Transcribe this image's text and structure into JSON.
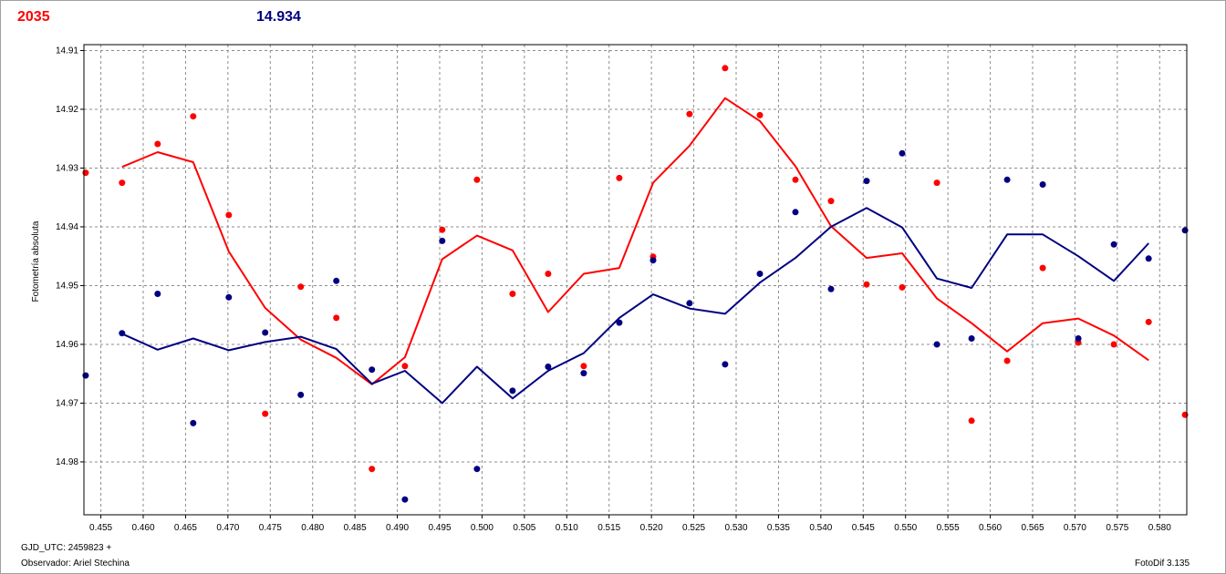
{
  "header": {
    "left_value": "2035",
    "left_color": "#ff0000",
    "right_value": "14.934",
    "right_color": "#000080"
  },
  "footer": {
    "gjd": "GJD_UTC: 2459823 +",
    "observer": "Observador: Ariel Stechina",
    "software": "FotoDif 3.135"
  },
  "chart_data": {
    "type": "scatter",
    "ylabel": "Fotometría absoluta",
    "xlabel": "",
    "xlim": [
      0.453,
      0.5832
    ],
    "ylim": [
      14.989,
      14.909
    ],
    "y_inverted": true,
    "grid": true,
    "x_ticks": [
      0.455,
      0.46,
      0.465,
      0.47,
      0.475,
      0.48,
      0.485,
      0.49,
      0.495,
      0.5,
      0.505,
      0.51,
      0.515,
      0.52,
      0.525,
      0.53,
      0.535,
      0.54,
      0.545,
      0.55,
      0.555,
      0.56,
      0.565,
      0.57,
      0.575,
      0.58
    ],
    "x_tick_labels": [
      "0.455",
      "0.460",
      "0.465",
      "0.470",
      "0.475",
      "0.480",
      "0.485",
      "0.490",
      "0.495",
      "0.500",
      "0.505",
      "0.510",
      "0.515",
      "0.520",
      "0.525",
      "0.530",
      "0.535",
      "0.540",
      "0.545",
      "0.550",
      "0.555",
      "0.560",
      "0.565",
      "0.570",
      "0.575",
      "0.580"
    ],
    "y_ticks": [
      14.91,
      14.92,
      14.93,
      14.94,
      14.95,
      14.96,
      14.97,
      14.98
    ],
    "y_tick_labels": [
      "14.91",
      "14.92",
      "14.93",
      "14.94",
      "14.95",
      "14.96",
      "14.97",
      "14.98"
    ],
    "series": [
      {
        "color": "#ff0000",
        "points": {
          "x": [
            0.4532,
            0.4575,
            0.4617,
            0.4659,
            0.4701,
            0.4744,
            0.4786,
            0.4828,
            0.487,
            0.4909,
            0.4953,
            0.4994,
            0.5036,
            0.5078,
            0.512,
            0.5162,
            0.5202,
            0.5245,
            0.5287,
            0.5328,
            0.537,
            0.5412,
            0.5454,
            0.5496,
            0.5537,
            0.5578,
            0.562,
            0.5662,
            0.5704,
            0.5746,
            0.5787,
            0.583
          ],
          "y": [
            14.9308,
            14.9325,
            14.9259,
            14.9212,
            14.938,
            14.9718,
            14.9502,
            14.9555,
            14.9812,
            14.9637,
            14.9405,
            14.932,
            14.9514,
            14.948,
            14.9637,
            14.9317,
            14.9451,
            14.9208,
            14.913,
            14.921,
            14.932,
            14.9356,
            14.9498,
            14.9503,
            14.9325,
            14.973,
            14.9628,
            14.947,
            14.9597,
            14.96,
            14.9562,
            14.972
          ]
        },
        "line": {
          "x": [
            0.4575,
            0.4617,
            0.4659,
            0.4701,
            0.4744,
            0.4786,
            0.4828,
            0.487,
            0.4909,
            0.4953,
            0.4994,
            0.5036,
            0.5078,
            0.512,
            0.5162,
            0.5202,
            0.5245,
            0.5287,
            0.5328,
            0.537,
            0.5412,
            0.5454,
            0.5496,
            0.5537,
            0.5578,
            0.562,
            0.5662,
            0.5704,
            0.5746,
            0.5787
          ],
          "y": [
            14.9298,
            14.9273,
            14.929,
            14.9442,
            14.9538,
            14.9592,
            14.9623,
            14.9668,
            14.9622,
            14.9455,
            14.9415,
            14.944,
            14.9545,
            14.948,
            14.947,
            14.9325,
            14.9262,
            14.9181,
            14.922,
            14.9297,
            14.9399,
            14.9453,
            14.9445,
            14.9522,
            14.9564,
            14.9612,
            14.9564,
            14.9556,
            14.9585,
            14.9627
          ]
        }
      },
      {
        "color": "#000080",
        "points": {
          "x": [
            0.4532,
            0.4575,
            0.4617,
            0.4659,
            0.4701,
            0.4744,
            0.4786,
            0.4828,
            0.487,
            0.4909,
            0.4953,
            0.4994,
            0.5036,
            0.5078,
            0.512,
            0.5162,
            0.5202,
            0.5245,
            0.5287,
            0.5328,
            0.537,
            0.5412,
            0.5454,
            0.5496,
            0.5537,
            0.5578,
            0.562,
            0.5662,
            0.5704,
            0.5746,
            0.5787,
            0.583
          ],
          "y": [
            14.9653,
            14.9581,
            14.9514,
            14.9734,
            14.952,
            14.958,
            14.9686,
            14.9492,
            14.9643,
            14.9864,
            14.9424,
            14.9812,
            14.9679,
            14.9638,
            14.9649,
            14.9563,
            14.9457,
            14.953,
            14.9634,
            14.948,
            14.9375,
            14.9506,
            14.9322,
            14.9275,
            14.96,
            14.959,
            14.932,
            14.9328,
            14.959,
            14.943,
            14.9454,
            14.9406
          ]
        },
        "line": {
          "x": [
            0.4575,
            0.4617,
            0.4659,
            0.4701,
            0.4744,
            0.4786,
            0.4828,
            0.487,
            0.4909,
            0.4953,
            0.4994,
            0.5036,
            0.5078,
            0.512,
            0.5162,
            0.5202,
            0.5245,
            0.5287,
            0.5328,
            0.537,
            0.5412,
            0.5454,
            0.5496,
            0.5537,
            0.5578,
            0.562,
            0.5662,
            0.5704,
            0.5746,
            0.5787
          ],
          "y": [
            14.9582,
            14.9609,
            14.959,
            14.961,
            14.9596,
            14.9587,
            14.9608,
            14.9667,
            14.9645,
            14.97,
            14.9638,
            14.9692,
            14.9645,
            14.9615,
            14.9555,
            14.9515,
            14.9539,
            14.9548,
            14.9495,
            14.9453,
            14.94,
            14.9368,
            14.9401,
            14.9488,
            14.9504,
            14.9413,
            14.9413,
            14.945,
            14.9492,
            14.9428
          ]
        }
      }
    ]
  }
}
